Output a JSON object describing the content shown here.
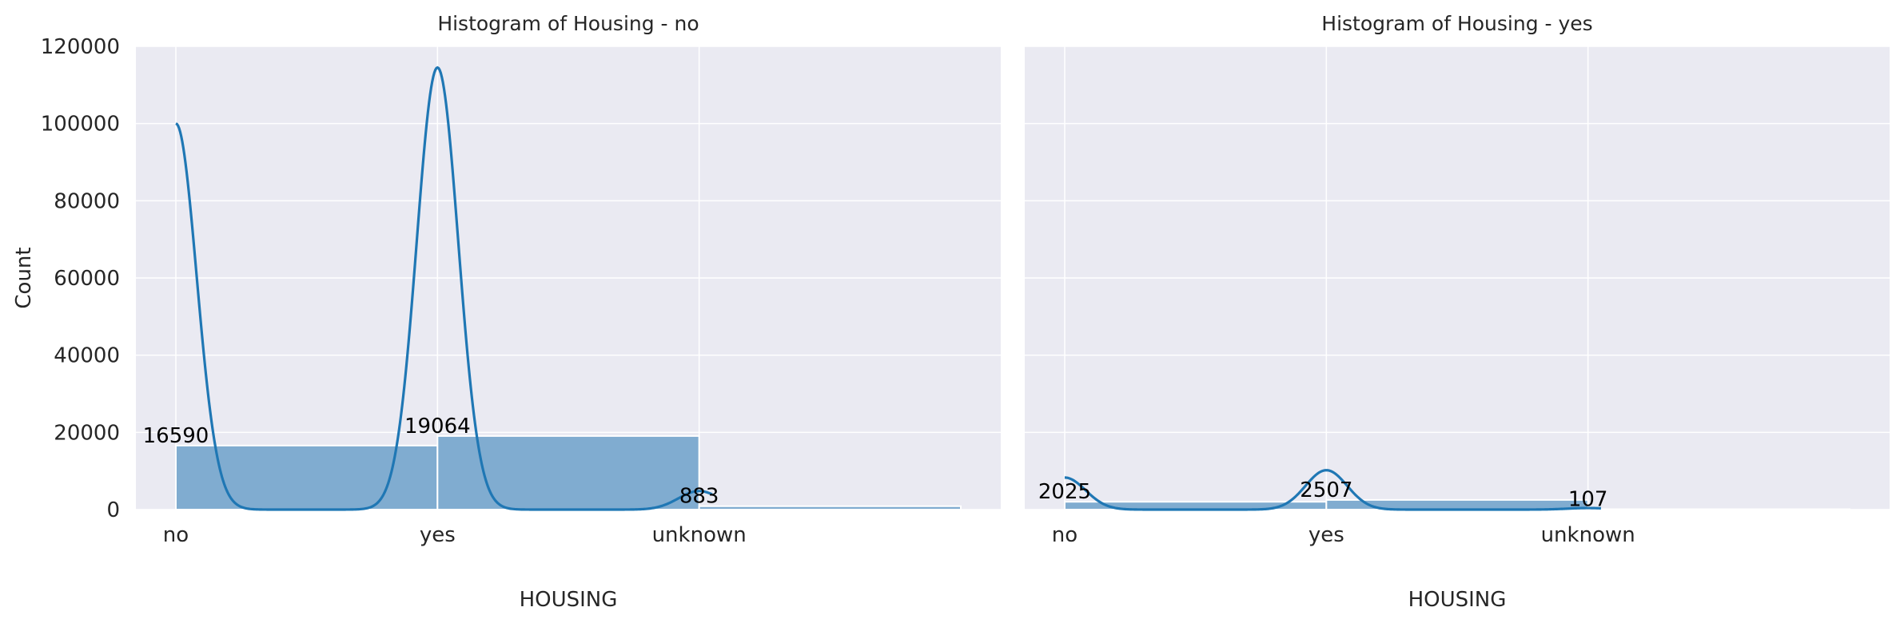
{
  "colors": {
    "plot_background": "#eaeaf2",
    "grid": "#ffffff",
    "bar_fill": "#80acd0",
    "bar_edge": "#ffffff",
    "kde_line": "#1f77b4"
  },
  "chart_data": [
    {
      "type": "bar",
      "title": "Histogram of Housing - no",
      "xlabel": "HOUSING",
      "ylabel": "Count",
      "categories": [
        "no",
        "yes",
        "unknown"
      ],
      "values": [
        16590,
        19064,
        883
      ],
      "data_labels": [
        "16590",
        "19064",
        "883"
      ],
      "ylim": [
        0,
        120000
      ],
      "yticks": [
        0,
        20000,
        40000,
        60000,
        80000,
        100000,
        120000
      ],
      "ytick_labels": [
        "0",
        "20000",
        "40000",
        "60000",
        "80000",
        "100000",
        "120000"
      ],
      "kde_peaks": [
        100000,
        114500,
        4800
      ],
      "grid": true
    },
    {
      "type": "bar",
      "title": "Histogram of Housing - yes",
      "xlabel": "HOUSING",
      "ylabel": "",
      "categories": [
        "no",
        "yes",
        "unknown"
      ],
      "values": [
        2025,
        2507,
        107
      ],
      "data_labels": [
        "2025",
        "2507",
        "107"
      ],
      "ylim": [
        0,
        120000
      ],
      "yticks": [
        0,
        20000,
        40000,
        60000,
        80000,
        100000,
        120000
      ],
      "kde_peaks": [
        8300,
        10200,
        400
      ],
      "grid": true
    }
  ]
}
